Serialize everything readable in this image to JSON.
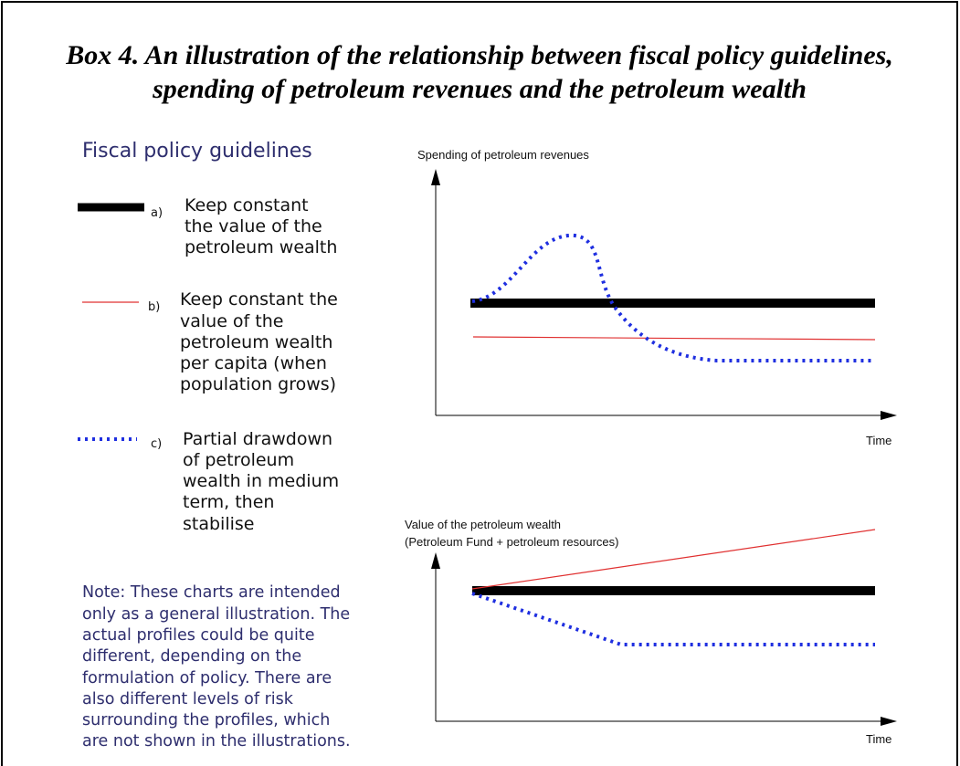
{
  "title": [
    "Box 4. An illustration of the relationship between fiscal policy guidelines,",
    "spending of petroleum revenues and the petroleum wealth"
  ],
  "legend": {
    "heading": "Fiscal policy guidelines",
    "items": [
      {
        "marker": "a)",
        "lines": [
          "Keep constant",
          "the value of the",
          "petroleum wealth"
        ]
      },
      {
        "marker": "b)",
        "lines": [
          "Keep constant the",
          "value of the",
          "petroleum wealth",
          "per capita (when",
          "population grows)"
        ]
      },
      {
        "marker": "c)",
        "lines": [
          "Partial drawdown",
          "of petroleum",
          "wealth in medium",
          "term, then",
          "stabilise"
        ]
      }
    ]
  },
  "note": [
    "Note: These charts are intended",
    "only as a general illustration. The",
    "actual profiles could be quite",
    "different, depending on the",
    "formulation of policy. There are",
    "also different levels of risk",
    "surrounding the profiles, which",
    "are not shown in the illustrations."
  ],
  "charts": [
    {
      "y_label": [
        "Spending of petroleum revenues"
      ],
      "x_label": "Time"
    },
    {
      "y_label": [
        "Value of the petroleum wealth",
        "(Petroleum Fund + petroleum resources)"
      ],
      "x_label": "Time"
    }
  ]
}
